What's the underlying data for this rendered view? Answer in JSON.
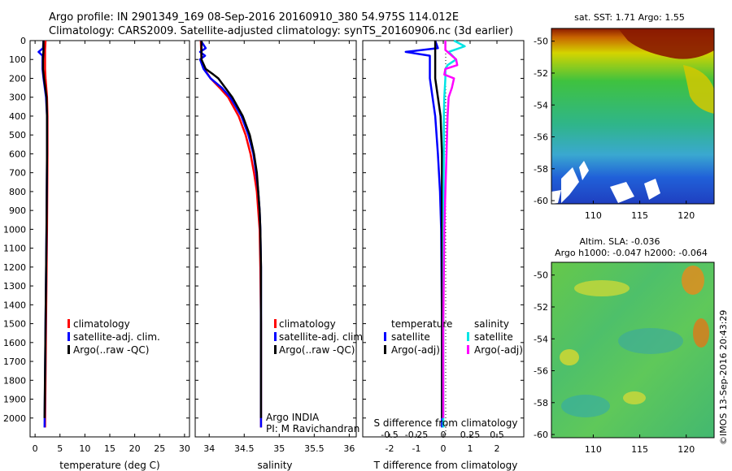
{
  "header": {
    "line1": "Argo profile: IN 2901349_169 08-Sep-2016 20160910_380 54.975S 114.012E",
    "line2": "Climatology: CARS2009. Satellite-adjusted climatology: synTS_20160906.nc (3d earlier)"
  },
  "depth_ticks": [
    0,
    100,
    200,
    300,
    400,
    500,
    600,
    700,
    800,
    900,
    1000,
    1100,
    1200,
    1300,
    1400,
    1500,
    1600,
    1700,
    1800,
    1900,
    2000
  ],
  "colors": {
    "climatology": "#ff0000",
    "satellite": "#0000ff",
    "argo": "#000000",
    "sal_satellite": "#00e5e5",
    "sal_argo": "#ff00ff"
  },
  "chart_data": [
    {
      "id": "temperature",
      "type": "line",
      "xlabel": "temperature (deg C)",
      "xlim": [
        -1,
        31
      ],
      "ylim": [
        2100,
        0
      ],
      "xticks": [
        0,
        5,
        10,
        15,
        20,
        25,
        30
      ],
      "legend": {
        "placement": "lower-right",
        "entries": [
          "climatology",
          "satellite-adj. clim.",
          "Argo(..raw -QC)"
        ]
      },
      "series": [
        {
          "name": "climatology",
          "color": "#ff0000",
          "depth": [
            0,
            50,
            100,
            150,
            200,
            300,
            400,
            600,
            1000,
            1500,
            2050
          ],
          "values": [
            2.1,
            2.0,
            2.0,
            2.0,
            2.1,
            2.4,
            2.5,
            2.5,
            2.4,
            2.2,
            2.0
          ]
        },
        {
          "name": "satellite-adj. clim.",
          "color": "#0000ff",
          "depth": [
            0,
            40,
            60,
            80,
            100,
            150,
            200,
            300,
            400,
            600,
            1000,
            1500,
            2050
          ],
          "values": [
            1.7,
            1.6,
            0.7,
            1.5,
            1.5,
            1.5,
            1.7,
            2.2,
            2.4,
            2.4,
            2.3,
            2.1,
            1.9
          ]
        },
        {
          "name": "Argo(..raw -QC)",
          "color": "#000000",
          "depth": [
            0,
            50,
            100,
            150,
            200,
            300,
            400,
            600,
            1000,
            1500,
            2000
          ],
          "values": [
            1.7,
            1.7,
            1.6,
            1.6,
            1.8,
            2.3,
            2.4,
            2.4,
            2.3,
            2.1,
            1.9
          ]
        }
      ]
    },
    {
      "id": "salinity",
      "type": "line",
      "xlabel": "salinity",
      "xlim": [
        33.8,
        36.1
      ],
      "ylim": [
        2100,
        0
      ],
      "xticks": [
        34,
        34.5,
        35,
        35.5,
        36
      ],
      "xticklabels": [
        "34",
        "34.5",
        "35",
        "35.5",
        "36"
      ],
      "legend": {
        "placement": "lower-right",
        "entries": [
          "climatology",
          "satellite-adj. clim.",
          "Argo(..raw -QC)"
        ]
      },
      "annotation": [
        "Argo INDIA",
        "PI: M Ravichandran"
      ],
      "series": [
        {
          "name": "climatology",
          "color": "#ff0000",
          "depth": [
            0,
            100,
            150,
            200,
            250,
            300,
            400,
            500,
            600,
            700,
            800,
            900,
            1000,
            1200,
            1500,
            2050
          ],
          "values": [
            33.88,
            33.89,
            33.93,
            34.02,
            34.15,
            34.27,
            34.42,
            34.52,
            34.59,
            34.64,
            34.68,
            34.7,
            34.72,
            34.73,
            34.74,
            34.74
          ]
        },
        {
          "name": "satellite-adj. clim.",
          "color": "#0000ff",
          "depth": [
            0,
            40,
            60,
            80,
            100,
            150,
            200,
            250,
            300,
            400,
            500,
            600,
            700,
            800,
            900,
            1000,
            1200,
            1500,
            2050
          ],
          "values": [
            33.88,
            33.95,
            33.87,
            33.94,
            33.87,
            33.92,
            34.02,
            34.18,
            34.3,
            34.46,
            34.56,
            34.63,
            34.67,
            34.7,
            34.72,
            34.73,
            34.74,
            34.74,
            34.74
          ]
        },
        {
          "name": "Argo(..raw -QC)",
          "color": "#000000",
          "depth": [
            0,
            100,
            150,
            180,
            200,
            250,
            300,
            400,
            500,
            600,
            700,
            800,
            900,
            1000,
            1200,
            1500,
            2000
          ],
          "values": [
            33.89,
            33.89,
            33.95,
            34.06,
            34.13,
            34.23,
            34.33,
            34.48,
            34.58,
            34.64,
            34.68,
            34.7,
            34.72,
            34.73,
            34.74,
            34.74,
            34.74
          ]
        }
      ]
    },
    {
      "id": "difference",
      "type": "line",
      "xlabel": "T difference from climatology",
      "xlabel2": "S difference from climatology",
      "xlim": [
        -3,
        3
      ],
      "ylim": [
        2100,
        0
      ],
      "xticks": [
        -2,
        -1,
        0,
        1,
        2
      ],
      "xticklabels": [
        "-2",
        "-1",
        "0",
        "1",
        "2"
      ],
      "sticklabels": [
        "-0.5",
        "-0.25",
        "0",
        "0.25",
        "0.5"
      ],
      "legend": {
        "placement": "lower-center",
        "titles": [
          "temperature",
          "salinity"
        ],
        "entries": [
          "satellite",
          "Argo(-adj)",
          "satellite",
          "Argo(-adj)"
        ]
      },
      "series": [
        {
          "name": "temperature satellite",
          "color": "#0000ff",
          "depth": [
            0,
            40,
            60,
            80,
            100,
            150,
            200,
            300,
            400,
            600,
            800,
            1000,
            1500,
            2050
          ],
          "values": [
            -0.3,
            -0.2,
            -1.4,
            -0.5,
            -0.5,
            -0.5,
            -0.5,
            -0.4,
            -0.3,
            -0.2,
            -0.12,
            -0.08,
            -0.05,
            -0.05
          ]
        },
        {
          "name": "temperature Argo(-adj)",
          "color": "#000000",
          "depth": [
            0,
            50,
            100,
            150,
            200,
            300,
            400,
            600,
            800,
            1000,
            1500,
            2000
          ],
          "values": [
            -0.3,
            -0.3,
            -0.3,
            -0.3,
            -0.3,
            -0.2,
            -0.1,
            -0.05,
            -0.05,
            -0.05,
            -0.05,
            -0.05
          ]
        },
        {
          "name": "salinity satellite",
          "color": "#00e5e5",
          "depth": [
            0,
            30,
            60,
            100,
            130,
            150,
            200,
            300,
            400,
            600,
            800,
            1000,
            1500,
            2050
          ],
          "values": [
            0.1,
            0.2,
            0.05,
            0.12,
            0.04,
            0.02,
            0.02,
            0.01,
            0.005,
            0.005,
            0.003,
            0.002,
            0.0,
            0.0
          ]
        },
        {
          "name": "salinity Argo(-adj)",
          "color": "#ff00ff",
          "depth": [
            0,
            50,
            100,
            130,
            150,
            180,
            200,
            250,
            300,
            400,
            600,
            800,
            1000,
            1500,
            2000
          ],
          "values": [
            0.02,
            0.02,
            0.12,
            0.13,
            0.02,
            0.01,
            0.1,
            0.08,
            0.05,
            0.04,
            0.03,
            0.02,
            0.01,
            0.0,
            0.0
          ]
        }
      ]
    },
    {
      "id": "sst_map",
      "type": "heatmap",
      "title": "sat. SST: 1.71 Argo: 1.55",
      "xticks": [
        110,
        115,
        120
      ],
      "yticks": [
        -50,
        -52,
        -54,
        -56,
        -58,
        -60
      ],
      "xlim": [
        105.5,
        123
      ],
      "ylim": [
        -60.2,
        -49.2
      ]
    },
    {
      "id": "sla_map",
      "type": "heatmap",
      "title": "Altim. SLA: -0.036",
      "subtitle": "Argo h1000: -0.047 h2000: -0.064",
      "xticks": [
        110,
        115,
        120
      ],
      "yticks": [
        -50,
        -52,
        -54,
        -56,
        -58,
        -60
      ],
      "xlim": [
        105.5,
        123
      ],
      "ylim": [
        -60.2,
        -49.2
      ]
    }
  ],
  "footer": {
    "stamp": "©IMOS 13-Sep-2016 20:43:29"
  }
}
